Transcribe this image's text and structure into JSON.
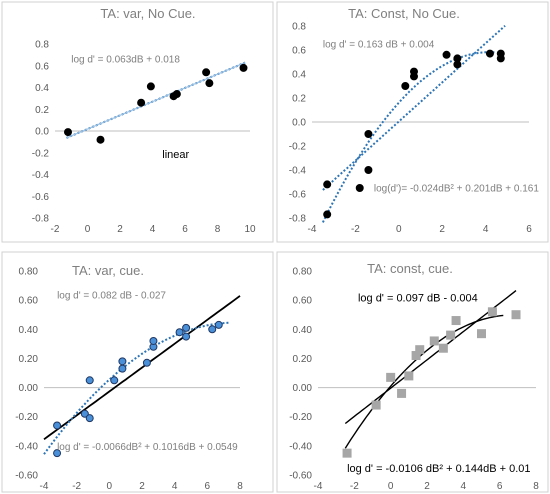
{
  "chart_data": [
    {
      "type": "scatter",
      "title": "TA: var, No Cue.",
      "xlim": [
        -2,
        10
      ],
      "ylim": [
        -0.8,
        0.8
      ],
      "xticks": [
        -2,
        0,
        2,
        4,
        6,
        8,
        10
      ],
      "yticks": [
        -0.8,
        -0.6,
        -0.4,
        -0.2,
        0.0,
        0.2,
        0.4,
        0.6,
        0.8
      ],
      "xtick_labels": [
        "-2",
        "0",
        "2",
        "4",
        "6",
        "8",
        "10"
      ],
      "ytick_labels": [
        "-0.8",
        "-0.6",
        "-0.4",
        "-0.2",
        "0.0",
        "0.2",
        "0.4",
        "0.6",
        "0.8"
      ],
      "series": [
        {
          "marker": "circle",
          "marker_color": "#000000",
          "marker_edge": "#000000",
          "points": [
            [
              -1.2,
              -0.01
            ],
            [
              0.8,
              -0.08
            ],
            [
              3.3,
              0.26
            ],
            [
              3.9,
              0.41
            ],
            [
              5.3,
              0.32
            ],
            [
              5.5,
              0.34
            ],
            [
              7.3,
              0.54
            ],
            [
              7.5,
              0.44
            ],
            [
              9.6,
              0.58
            ]
          ]
        }
      ],
      "fits": [
        {
          "kind": "linear",
          "a": 0,
          "b": 0.063,
          "c": 0.018,
          "x_range": [
            -1.3,
            9.7
          ],
          "style": "dotted",
          "color": "#2e75b6"
        },
        {
          "kind": "linear",
          "a": 0,
          "b": 0.063,
          "c": 0.018,
          "x_range": [
            -1.3,
            9.7
          ],
          "style": "solid",
          "color": "#9dc3e6"
        }
      ],
      "annotations": [
        {
          "text": "log d' = 0.063dB + 0.018",
          "x": -1.0,
          "y": 0.63,
          "style": "gray"
        },
        {
          "text": "linear",
          "x": 4.6,
          "y": -0.25,
          "style": "dark"
        }
      ]
    },
    {
      "type": "scatter",
      "title": "TA: Const, No Cue.",
      "xlim": [
        -4,
        6
      ],
      "ylim": [
        -0.8,
        0.8
      ],
      "xticks": [
        -4,
        -2,
        0,
        2,
        4,
        6
      ],
      "yticks": [
        -0.8,
        -0.6,
        -0.4,
        -0.2,
        0.0,
        0.2,
        0.4,
        0.6,
        0.8
      ],
      "xtick_labels": [
        "-4",
        "-2",
        "0",
        "2",
        "4",
        "6"
      ],
      "ytick_labels": [
        "-0.8",
        "-0.6",
        "-0.4",
        "-0.2",
        "0.0",
        "0.2",
        "0.4",
        "0.6",
        "0.8"
      ],
      "series": [
        {
          "marker": "circle",
          "marker_color": "#000000",
          "marker_edge": "#000000",
          "points": [
            [
              -3.3,
              -0.52
            ],
            [
              -3.3,
              -0.77
            ],
            [
              -1.8,
              -0.55
            ],
            [
              -1.4,
              -0.1
            ],
            [
              -1.4,
              -0.4
            ],
            [
              0.3,
              0.3
            ],
            [
              0.7,
              0.42
            ],
            [
              0.7,
              0.38
            ],
            [
              2.2,
              0.56
            ],
            [
              2.7,
              0.48
            ],
            [
              2.7,
              0.53
            ],
            [
              4.2,
              0.57
            ],
            [
              4.7,
              0.57
            ],
            [
              4.7,
              0.53
            ]
          ]
        }
      ],
      "fits": [
        {
          "kind": "linear",
          "a": 0,
          "b": 0.163,
          "c": 0.004,
          "x_range": [
            -3.5,
            4.9
          ],
          "style": "dotted",
          "color": "#2e75b6"
        },
        {
          "kind": "quadratic",
          "a": -0.024,
          "b": 0.201,
          "c": 0.161,
          "x_range": [
            -3.5,
            4.5
          ],
          "style": "dotted",
          "color": "#2e75b6"
        }
      ],
      "annotations": [
        {
          "text": "log d' = 0.163 dB + 0.004",
          "x": -3.5,
          "y": 0.62,
          "style": "gray"
        },
        {
          "text": "log(d')= -0.024dB² + 0.201dB + 0.161",
          "x": -1.15,
          "y": -0.58,
          "style": "gray"
        }
      ]
    },
    {
      "type": "scatter",
      "title": "TA: var, cue.",
      "xlim": [
        -4,
        8
      ],
      "ylim": [
        -0.6,
        0.8
      ],
      "xticks": [
        -4,
        -2,
        0,
        2,
        4,
        6,
        8
      ],
      "yticks": [
        -0.6,
        -0.4,
        -0.2,
        0.0,
        0.2,
        0.4,
        0.6,
        0.8
      ],
      "xtick_labels": [
        "-4",
        "-2",
        "0",
        "2",
        "4",
        "6",
        "8"
      ],
      "ytick_labels": [
        "-0.60",
        "-0.40",
        "-0.20",
        "0.00",
        "0.20",
        "0.40",
        "0.60",
        "0.80"
      ],
      "series": [
        {
          "marker": "circle",
          "marker_color": "#4a90d9",
          "marker_edge": "#1f3864",
          "points": [
            [
              -3.2,
              -0.26
            ],
            [
              -3.2,
              -0.45
            ],
            [
              -1.5,
              -0.18
            ],
            [
              -1.2,
              -0.21
            ],
            [
              -1.2,
              0.05
            ],
            [
              0.3,
              0.05
            ],
            [
              0.8,
              0.13
            ],
            [
              0.8,
              0.18
            ],
            [
              2.3,
              0.17
            ],
            [
              2.7,
              0.28
            ],
            [
              2.7,
              0.32
            ],
            [
              4.3,
              0.38
            ],
            [
              4.7,
              0.35
            ],
            [
              4.7,
              0.41
            ],
            [
              6.3,
              0.4
            ],
            [
              6.7,
              0.43
            ]
          ]
        }
      ],
      "fits": [
        {
          "kind": "linear",
          "a": 0,
          "b": 0.082,
          "c": -0.027,
          "x_range": [
            -4,
            8
          ],
          "style": "solid",
          "color": "#000000"
        },
        {
          "kind": "quadratic",
          "a": -0.0066,
          "b": 0.1016,
          "c": 0.0549,
          "x_range": [
            -4,
            7.3
          ],
          "style": "dotted",
          "color": "#2e75b6"
        }
      ],
      "annotations": [
        {
          "text": "log d' = 0.082 dB - 0.027",
          "x": -3.2,
          "y": 0.61,
          "style": "gray"
        },
        {
          "text": "log d' = -0.0066dB² + 0.1016dB + 0.0549",
          "x": -3.2,
          "y": -0.43,
          "style": "gray"
        }
      ]
    },
    {
      "type": "scatter",
      "title": "TA: const, cue.",
      "xlim": [
        -4,
        8
      ],
      "ylim": [
        -0.6,
        0.8
      ],
      "xticks": [
        -4,
        -2,
        0,
        2,
        4,
        6,
        8
      ],
      "yticks": [
        -0.6,
        -0.4,
        -0.2,
        0.0,
        0.2,
        0.4,
        0.6,
        0.8
      ],
      "xtick_labels": [
        "-4",
        "-2",
        "0",
        "2",
        "4",
        "6",
        "8"
      ],
      "ytick_labels": [
        "-0.60",
        "-0.40",
        "-0.20",
        "0.00",
        "0.20",
        "0.40",
        "0.60",
        "0.80"
      ],
      "series": [
        {
          "marker": "square",
          "marker_color": "#a6a6a6",
          "marker_edge": "#a6a6a6",
          "points": [
            [
              -2.4,
              -0.45
            ],
            [
              -0.8,
              -0.12
            ],
            [
              0,
              0.07
            ],
            [
              0.6,
              -0.04
            ],
            [
              1.0,
              0.08
            ],
            [
              1.4,
              0.22
            ],
            [
              1.6,
              0.26
            ],
            [
              2.4,
              0.32
            ],
            [
              2.9,
              0.27
            ],
            [
              3.3,
              0.36
            ],
            [
              3.6,
              0.46
            ],
            [
              5.0,
              0.37
            ],
            [
              5.6,
              0.52
            ],
            [
              6.9,
              0.5
            ]
          ]
        }
      ],
      "fits": [
        {
          "kind": "linear",
          "a": 0,
          "b": 0.097,
          "c": -0.004,
          "x_range": [
            -2.5,
            6.9
          ],
          "style": "solid",
          "color": "#000000"
        },
        {
          "kind": "quadratic",
          "a": -0.0106,
          "b": 0.144,
          "c": 0.01,
          "x_range": [
            -2.5,
            6.2
          ],
          "style": "solid",
          "color": "#000000"
        }
      ],
      "annotations": [
        {
          "text": "log d' = 0.097 dB - 0.004",
          "x": -1.8,
          "y": 0.59,
          "style": "dark"
        },
        {
          "text": "log d' = -0.0106 dB² + 0.144dB + 0.01",
          "x": -2.4,
          "y": -0.58,
          "style": "dark"
        }
      ]
    }
  ]
}
